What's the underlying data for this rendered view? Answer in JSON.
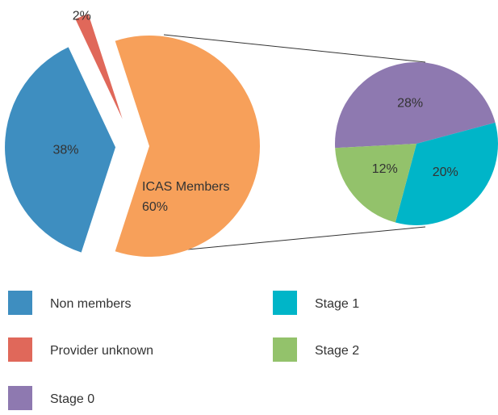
{
  "chart_data": [
    {
      "type": "pie",
      "categories": [
        "Non members",
        "Provider unknown",
        "ICAS Members"
      ],
      "values": [
        38,
        2,
        60
      ],
      "value_labels": [
        "38%",
        "2%",
        "60%"
      ],
      "colors": [
        "#3e8ec0",
        "#e0685a",
        "#f7a05a"
      ]
    },
    {
      "type": "pie",
      "categories": [
        "Stage 0",
        "Stage 1",
        "Stage 2"
      ],
      "values": [
        28,
        20,
        12
      ],
      "value_labels": [
        "28%",
        "20%",
        "12%"
      ],
      "colors": [
        "#8e79b0",
        "#00b5c8",
        "#93c26b"
      ]
    }
  ]
}
